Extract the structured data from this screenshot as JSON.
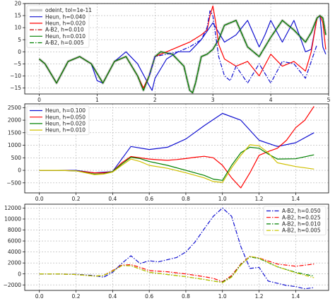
{
  "chart_data": [
    {
      "type": "line",
      "xlim": [
        -0.25,
        5.0
      ],
      "ylim": [
        -17.5,
        20
      ],
      "xticks": [
        0,
        1,
        2,
        3,
        4,
        5
      ],
      "yticks": [
        20,
        15,
        10,
        5,
        0,
        -5,
        -10,
        -15
      ],
      "grid": true,
      "legend": {
        "placement": "upper-left"
      },
      "series": [
        {
          "name": "odeint, tol=1e-11",
          "color": "#c8c8c8",
          "dash": "solid",
          "width": 3.5,
          "x": [
            0,
            0.1,
            0.3,
            0.5,
            0.7,
            0.9,
            1.1,
            1.3,
            1.5,
            1.7,
            1.8,
            1.9,
            2.0,
            2.1,
            2.3,
            2.5,
            2.6,
            2.65,
            2.7,
            2.8,
            2.9,
            3.0,
            3.1,
            3.2,
            3.4,
            3.6,
            3.8,
            4.0,
            4.2,
            4.4,
            4.6,
            4.7,
            4.8,
            4.85,
            4.9,
            4.95
          ],
          "y": [
            -3,
            -5,
            -13,
            -4,
            -2,
            -5,
            -13,
            -4,
            -2,
            -10,
            -16,
            -10,
            -2,
            0,
            -1,
            -6,
            -16,
            -17,
            -13,
            -2,
            -1,
            1,
            5,
            11,
            13,
            2,
            -2,
            6,
            13,
            9,
            4,
            8,
            14,
            15,
            14,
            7
          ]
        },
        {
          "name": "Heun, h=0.040",
          "color": "#1010d0",
          "dash": "solid",
          "width": 1.2,
          "x": [
            0,
            0.1,
            0.3,
            0.5,
            0.7,
            0.9,
            1.0,
            1.1,
            1.3,
            1.5,
            1.7,
            1.9,
            1.95,
            2.0,
            2.2,
            2.4,
            2.6,
            2.8,
            3.0,
            3.2,
            3.4,
            3.6,
            3.8,
            3.9,
            4.0,
            4.2,
            4.4,
            4.6,
            4.7,
            4.8,
            4.85,
            4.9,
            4.95
          ],
          "y": [
            -3,
            -5,
            -13,
            -4,
            -2,
            -5,
            -12,
            -13,
            -4,
            0,
            -5,
            -14,
            -16,
            -11,
            -3,
            0,
            0,
            5,
            12,
            4,
            7,
            13,
            2,
            7,
            13,
            4,
            13,
            0,
            1,
            14,
            15,
            2,
            -1
          ]
        },
        {
          "name": "Heun, h=0.020",
          "color": "#ff0000",
          "dash": "solid",
          "width": 1.2,
          "x": [
            0,
            0.1,
            0.3,
            0.5,
            0.7,
            0.9,
            1.1,
            1.3,
            1.5,
            1.7,
            1.8,
            1.9,
            2.0,
            2.2,
            2.4,
            2.6,
            2.8,
            2.9,
            2.95,
            3.0,
            3.05,
            3.1,
            3.2,
            3.4,
            3.6,
            3.8,
            4.0,
            4.2,
            4.4,
            4.6,
            4.7,
            4.8,
            4.85,
            4.9,
            4.95
          ],
          "y": [
            -3,
            -5,
            -13,
            -4,
            -2,
            -5,
            -13,
            -4,
            -2,
            -10,
            -15,
            -10,
            -2,
            0,
            2,
            4,
            7,
            9,
            15,
            19,
            12,
            3,
            -3,
            -6,
            -4,
            -10,
            -1,
            -6,
            -4,
            -8,
            0,
            14,
            15,
            12,
            1
          ]
        },
        {
          "name": "A-B2, h=0.010",
          "color": "#c00000",
          "dash": "dashdot",
          "width": 1.2,
          "x": [
            0,
            0.1,
            0.3,
            0.5,
            0.7,
            0.9,
            1.1,
            1.3,
            1.5,
            1.7,
            1.8,
            1.9,
            2.0,
            2.1,
            2.3,
            2.5,
            2.6,
            2.65,
            2.7,
            2.8,
            2.9,
            3.0,
            3.1,
            3.2,
            3.4,
            3.6,
            3.8,
            4.0,
            4.2,
            4.4,
            4.6,
            4.7,
            4.8,
            4.85,
            4.9,
            4.95
          ],
          "y": [
            -3,
            -5,
            -13,
            -4,
            -2,
            -5,
            -13,
            -4,
            -2,
            -10,
            -16,
            -10,
            -2,
            0,
            -1,
            -6,
            -16,
            -17,
            -13,
            -2,
            -1,
            1,
            5,
            11,
            13,
            2,
            -2,
            6,
            13,
            9,
            4,
            8,
            14,
            15,
            14,
            7
          ]
        },
        {
          "name": "Heun, h=0.010",
          "color": "#008000",
          "dash": "solid",
          "width": 1.2,
          "x": [
            0,
            0.1,
            0.3,
            0.5,
            0.7,
            0.9,
            1.1,
            1.3,
            1.5,
            1.7,
            1.8,
            1.9,
            2.0,
            2.1,
            2.3,
            2.5,
            2.6,
            2.65,
            2.7,
            2.8,
            2.9,
            3.0,
            3.1,
            3.2,
            3.4,
            3.6,
            3.8,
            4.0,
            4.2,
            4.4,
            4.6,
            4.7,
            4.8,
            4.85,
            4.9,
            4.95
          ],
          "y": [
            -3,
            -5,
            -13,
            -4,
            -2,
            -5,
            -13,
            -4,
            -2,
            -10,
            -16,
            -10,
            -2,
            0,
            -1,
            -6,
            -16,
            -17,
            -13,
            -2,
            -1,
            1,
            5,
            11,
            13,
            2,
            -2,
            6,
            13,
            9,
            4,
            8,
            14,
            15,
            14,
            7
          ]
        },
        {
          "name": "A-B2, h=0.005",
          "color": "#008000",
          "dash": "dashdot",
          "width": 1.2,
          "x": [
            0,
            0.1,
            0.3,
            0.5,
            0.7,
            0.9,
            1.1,
            1.3,
            1.5,
            1.7,
            1.8,
            1.9,
            2.0,
            2.1,
            2.3,
            2.5,
            2.6,
            2.65,
            2.7,
            2.8,
            2.9,
            3.0,
            3.1,
            3.2,
            3.4,
            3.6,
            3.8,
            4.0,
            4.2,
            4.4,
            4.6,
            4.7,
            4.8,
            4.85,
            4.9,
            4.95
          ],
          "y": [
            -3,
            -5,
            -13,
            -4,
            -2,
            -5,
            -13,
            -4,
            -2,
            -10,
            -16,
            -10,
            -2,
            0,
            -1,
            -6,
            -16,
            -17,
            -13,
            -2,
            -1,
            1,
            5,
            11,
            13,
            2,
            -2,
            6,
            13,
            9,
            4,
            8,
            14,
            15,
            14,
            7
          ]
        },
        {
          "name": "",
          "color": "#1010d0",
          "dash": "dashdot",
          "width": 1.2,
          "legend": false,
          "x": [
            1.9,
            2.0,
            2.2,
            2.4,
            2.6,
            2.8,
            2.9,
            2.95,
            3.0,
            3.1,
            3.2,
            3.3,
            3.4,
            3.6,
            3.8,
            4.0,
            4.2,
            4.4,
            4.6,
            4.7,
            4.8
          ],
          "y": [
            -10,
            -2,
            -1,
            0,
            2,
            5,
            10,
            17,
            15,
            -2,
            -10,
            -12,
            -6,
            -13,
            -5,
            -13,
            -4,
            -5,
            -11,
            -4,
            3
          ]
        }
      ]
    },
    {
      "type": "line",
      "xlim": [
        -0.08,
        1.58
      ],
      "ylim": [
        -900,
        2650
      ],
      "xticks": [
        0.0,
        0.2,
        0.4,
        0.6,
        0.8,
        1.0,
        1.2,
        1.4
      ],
      "yticks": [
        2500,
        2000,
        1500,
        1000,
        500,
        0,
        -500
      ],
      "grid": true,
      "legend": {
        "placement": "upper-left"
      },
      "series": [
        {
          "name": "Heun, h=0.100",
          "color": "#1010d0",
          "dash": "solid",
          "width": 1.2,
          "x": [
            0.0,
            0.1,
            0.2,
            0.3,
            0.4,
            0.5,
            0.6,
            0.7,
            0.8,
            0.9,
            1.0,
            1.1,
            1.2,
            1.3,
            1.4,
            1.5
          ],
          "y": [
            0,
            0,
            0,
            -100,
            -50,
            950,
            830,
            920,
            1250,
            1780,
            2270,
            2000,
            1200,
            950,
            1100,
            1500
          ]
        },
        {
          "name": "Heun, h=0.050",
          "color": "#ff0000",
          "dash": "solid",
          "width": 1.2,
          "x": [
            0.0,
            0.05,
            0.1,
            0.15,
            0.2,
            0.25,
            0.3,
            0.35,
            0.4,
            0.45,
            0.5,
            0.55,
            0.6,
            0.65,
            0.7,
            0.75,
            0.8,
            0.85,
            0.9,
            0.95,
            1.0,
            1.05,
            1.1,
            1.15,
            1.2,
            1.25,
            1.3,
            1.35,
            1.4,
            1.45,
            1.5
          ],
          "y": [
            0,
            0,
            0,
            -10,
            -20,
            -60,
            -100,
            -100,
            -50,
            300,
            550,
            500,
            450,
            420,
            400,
            430,
            470,
            520,
            560,
            500,
            200,
            -300,
            -700,
            -100,
            600,
            750,
            880,
            1200,
            1700,
            2000,
            2550
          ]
        },
        {
          "name": "Heun, h=0.020",
          "color": "#008000",
          "dash": "solid",
          "width": 1.2,
          "x": [
            0.0,
            0.1,
            0.2,
            0.3,
            0.35,
            0.4,
            0.45,
            0.5,
            0.55,
            0.6,
            0.7,
            0.8,
            0.9,
            0.95,
            1.0,
            1.05,
            1.1,
            1.15,
            1.2,
            1.25,
            1.3,
            1.4,
            1.5
          ],
          "y": [
            0,
            0,
            -20,
            -150,
            -140,
            -50,
            250,
            520,
            470,
            350,
            200,
            0,
            -200,
            -350,
            -400,
            200,
            700,
            920,
            880,
            650,
            450,
            460,
            620
          ]
        },
        {
          "name": "Heun, h=0.010",
          "color": "#d0c000",
          "dash": "solid",
          "width": 1.2,
          "x": [
            0.0,
            0.1,
            0.2,
            0.3,
            0.35,
            0.4,
            0.45,
            0.5,
            0.55,
            0.6,
            0.7,
            0.8,
            0.9,
            0.95,
            1.0,
            1.05,
            1.1,
            1.15,
            1.2,
            1.25,
            1.3,
            1.4,
            1.5
          ],
          "y": [
            0,
            0,
            -20,
            -170,
            -150,
            -70,
            200,
            450,
            350,
            200,
            80,
            -100,
            -300,
            -450,
            -480,
            100,
            600,
            1020,
            980,
            700,
            300,
            150,
            50
          ]
        }
      ]
    },
    {
      "type": "line",
      "xlim": [
        -0.08,
        1.58
      ],
      "ylim": [
        -3000,
        12700
      ],
      "xticks": [
        0.0,
        0.2,
        0.4,
        0.6,
        0.8,
        1.0,
        1.2,
        1.4
      ],
      "yticks": [
        12000,
        10000,
        8000,
        6000,
        4000,
        2000,
        0,
        -2000
      ],
      "grid": true,
      "legend": {
        "placement": "upper-right"
      },
      "series": [
        {
          "name": "A-B2, h=0.050",
          "color": "#1010d0",
          "dash": "dashdot",
          "width": 1.2,
          "x": [
            0.0,
            0.1,
            0.2,
            0.3,
            0.35,
            0.4,
            0.45,
            0.5,
            0.55,
            0.6,
            0.65,
            0.7,
            0.75,
            0.8,
            0.85,
            0.9,
            0.95,
            1.0,
            1.05,
            1.1,
            1.15,
            1.2,
            1.25,
            1.3,
            1.35,
            1.4,
            1.45,
            1.5
          ],
          "y": [
            0,
            0,
            -50,
            -300,
            -600,
            300,
            1900,
            3300,
            1900,
            2400,
            2200,
            2600,
            3000,
            4000,
            5800,
            8200,
            10500,
            12000,
            10500,
            5000,
            1000,
            1200,
            -1300,
            -1700,
            -2100,
            -2300,
            -2700,
            -2500
          ]
        },
        {
          "name": "A-B2, h=0.025",
          "color": "#ff0000",
          "dash": "dashdot",
          "width": 1.2,
          "x": [
            0.0,
            0.1,
            0.2,
            0.3,
            0.35,
            0.4,
            0.45,
            0.5,
            0.55,
            0.6,
            0.7,
            0.8,
            0.9,
            0.95,
            1.0,
            1.05,
            1.1,
            1.15,
            1.2,
            1.3,
            1.4,
            1.5
          ],
          "y": [
            0,
            0,
            -100,
            -400,
            -300,
            600,
            1600,
            1700,
            1200,
            600,
            400,
            0,
            -500,
            -800,
            -1400,
            -300,
            1800,
            3200,
            2900,
            1800,
            1400,
            1800
          ]
        },
        {
          "name": "A-B2, h=0.010",
          "color": "#008000",
          "dash": "dashdot",
          "width": 1.2,
          "x": [
            0.0,
            0.1,
            0.2,
            0.3,
            0.35,
            0.4,
            0.45,
            0.5,
            0.55,
            0.6,
            0.7,
            0.8,
            0.9,
            0.95,
            1.0,
            1.05,
            1.1,
            1.15,
            1.2,
            1.3,
            1.4,
            1.5
          ],
          "y": [
            0,
            0,
            -100,
            -400,
            -300,
            500,
            1500,
            1500,
            900,
            300,
            -100,
            -500,
            -1000,
            -1300,
            -1500,
            -500,
            1700,
            3100,
            2800,
            1300,
            300,
            -400
          ]
        },
        {
          "name": "A-B2, h=0.005",
          "color": "#c8c800",
          "dash": "dashdot",
          "width": 1.2,
          "x": [
            0.0,
            0.1,
            0.2,
            0.3,
            0.35,
            0.4,
            0.45,
            0.5,
            0.55,
            0.6,
            0.7,
            0.8,
            0.9,
            0.95,
            1.0,
            1.05,
            1.1,
            1.15,
            1.2,
            1.3,
            1.4,
            1.5
          ],
          "y": [
            0,
            0,
            -100,
            -400,
            -300,
            500,
            1500,
            1500,
            900,
            300,
            -100,
            -500,
            -1000,
            -1300,
            -1600,
            -600,
            1600,
            3200,
            2900,
            1300,
            200,
            -700
          ]
        }
      ]
    }
  ]
}
